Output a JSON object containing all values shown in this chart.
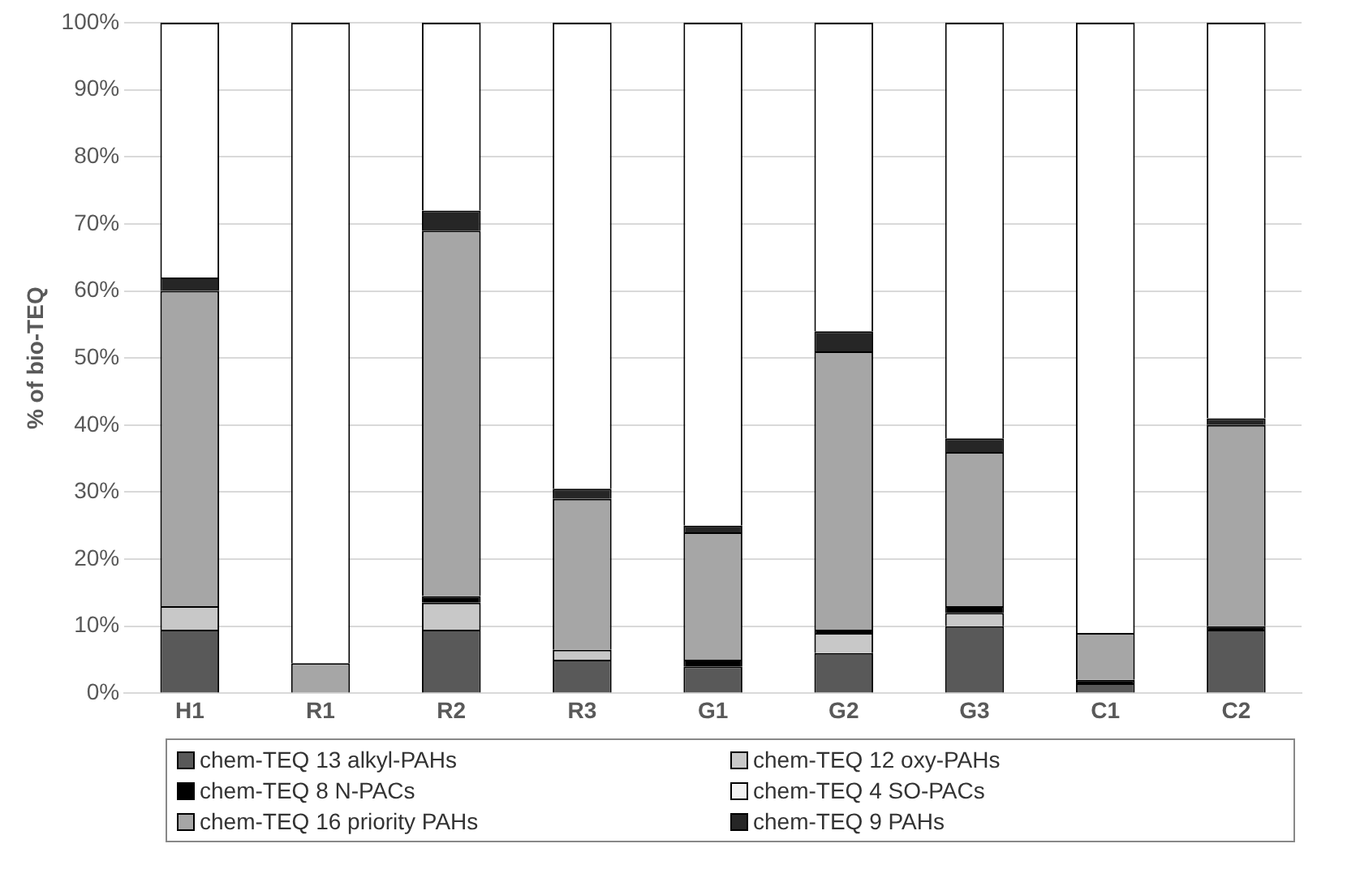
{
  "chart_data": {
    "type": "bar",
    "stacked": true,
    "ylabel": "% of bio-TEQ",
    "categories": [
      "H1",
      "R1",
      "R2",
      "R3",
      "G1",
      "G2",
      "G3",
      "C1",
      "C2"
    ],
    "series": [
      {
        "name": "chem-TEQ 13 alkyl-PAHs",
        "color": "#595959",
        "values": [
          9.5,
          0,
          9.5,
          5,
          4,
          6,
          10,
          1.5,
          9.5
        ]
      },
      {
        "name": "chem-TEQ 12 oxy-PAHs",
        "color": "#c8c8c8",
        "values": [
          3.5,
          0,
          4,
          1.5,
          0,
          3,
          2,
          0,
          0
        ]
      },
      {
        "name": "chem-TEQ 8 N-PACs",
        "color": "#000000",
        "values": [
          0,
          0,
          1,
          0,
          1,
          0.5,
          1,
          0.5,
          0.5
        ]
      },
      {
        "name": "chem-TEQ 4 SO-PACs",
        "color": "#f2f2f2",
        "values": [
          0,
          0,
          0,
          0,
          0,
          0,
          0,
          0,
          0
        ]
      },
      {
        "name": "chem-TEQ 16 priority PAHs",
        "color": "#a6a6a6",
        "values": [
          47,
          4.5,
          54.5,
          22.5,
          19,
          41.5,
          23,
          7,
          30
        ]
      },
      {
        "name": "chem-TEQ 9 PAHs",
        "color": "#262626",
        "values": [
          2,
          0,
          3,
          1.5,
          1,
          3,
          2,
          0,
          1
        ]
      },
      {
        "color": "#ffffff",
        "values": [
          38,
          95.5,
          28,
          69.5,
          75,
          46,
          62,
          91,
          59
        ]
      }
    ],
    "ylim": [
      0,
      100
    ],
    "yticks": [
      {
        "value": 0,
        "label": "0%"
      },
      {
        "value": 10,
        "label": "10%"
      },
      {
        "value": 20,
        "label": "20%"
      },
      {
        "value": 30,
        "label": "30%"
      },
      {
        "value": 40,
        "label": "40%"
      },
      {
        "value": 50,
        "label": "50%"
      },
      {
        "value": 60,
        "label": "60%"
      },
      {
        "value": 70,
        "label": "70%"
      },
      {
        "value": 80,
        "label": "80%"
      },
      {
        "value": 90,
        "label": "90%"
      },
      {
        "value": 100,
        "label": "100%"
      }
    ],
    "grid": "y",
    "legend": "bottom"
  }
}
